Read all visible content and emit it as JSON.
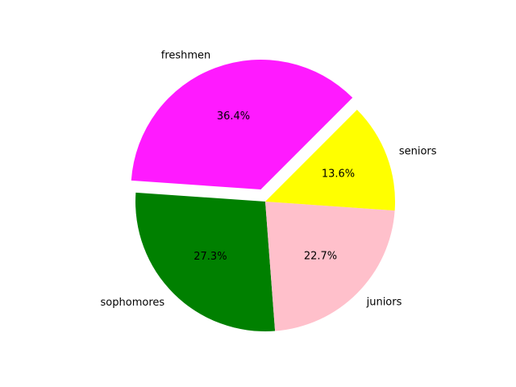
{
  "chart_data": {
    "type": "pie",
    "categories": [
      "freshmen",
      "sophomores",
      "juniors",
      "seniors"
    ],
    "values": [
      36.4,
      27.3,
      22.7,
      13.6
    ],
    "percent_labels": [
      "36.4%",
      "27.3%",
      "22.7%",
      "13.6%"
    ],
    "colors": [
      "#ff1aff",
      "#008000",
      "#ffc0cb",
      "#ffff00"
    ],
    "exploded": [
      "freshmen"
    ],
    "legend": "none"
  }
}
